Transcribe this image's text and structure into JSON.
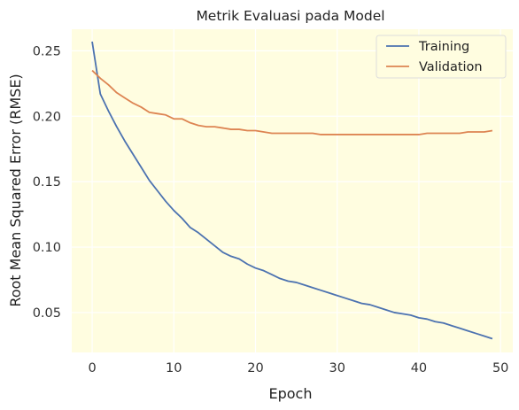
{
  "chart_data": {
    "type": "line",
    "title": "Metrik Evaluasi pada Model",
    "xlabel": "Epoch",
    "ylabel": "Root Mean Squared Error (RMSE)",
    "xlim": [
      -2.5,
      51.5
    ],
    "ylim": [
      0.0195,
      0.2665
    ],
    "xticks": [
      0,
      10,
      20,
      30,
      40,
      50
    ],
    "yticks": [
      0.05,
      0.1,
      0.15,
      0.2,
      0.25
    ],
    "xtick_labels": [
      "0",
      "10",
      "20",
      "30",
      "40",
      "50"
    ],
    "ytick_labels": [
      "0.05",
      "0.10",
      "0.15",
      "0.20",
      "0.25"
    ],
    "grid": true,
    "legend_position": "top-right",
    "background_color": "#fffde0",
    "grid_color": "#ffffff",
    "x": [
      0,
      1,
      2,
      3,
      4,
      5,
      6,
      7,
      8,
      9,
      10,
      11,
      12,
      13,
      14,
      15,
      16,
      17,
      18,
      19,
      20,
      21,
      22,
      23,
      24,
      25,
      26,
      27,
      28,
      29,
      30,
      31,
      32,
      33,
      34,
      35,
      36,
      37,
      38,
      39,
      40,
      41,
      42,
      43,
      44,
      45,
      46,
      47,
      48,
      49
    ],
    "series": [
      {
        "name": "Training",
        "color": "#4c72b0",
        "values": [
          0.257,
          0.217,
          0.204,
          0.192,
          0.181,
          0.171,
          0.161,
          0.151,
          0.143,
          0.135,
          0.128,
          0.122,
          0.115,
          0.111,
          0.106,
          0.101,
          0.096,
          0.093,
          0.091,
          0.087,
          0.084,
          0.082,
          0.079,
          0.076,
          0.074,
          0.073,
          0.071,
          0.069,
          0.067,
          0.065,
          0.063,
          0.061,
          0.059,
          0.057,
          0.056,
          0.054,
          0.052,
          0.05,
          0.049,
          0.048,
          0.046,
          0.045,
          0.043,
          0.042,
          0.04,
          0.038,
          0.036,
          0.034,
          0.032,
          0.03
        ]
      },
      {
        "name": "Validation",
        "color": "#dd8452",
        "values": [
          0.235,
          0.229,
          0.224,
          0.218,
          0.214,
          0.21,
          0.207,
          0.203,
          0.202,
          0.201,
          0.198,
          0.198,
          0.195,
          0.193,
          0.192,
          0.192,
          0.191,
          0.19,
          0.19,
          0.189,
          0.189,
          0.188,
          0.187,
          0.187,
          0.187,
          0.187,
          0.187,
          0.187,
          0.186,
          0.186,
          0.186,
          0.186,
          0.186,
          0.186,
          0.186,
          0.186,
          0.186,
          0.186,
          0.186,
          0.186,
          0.186,
          0.187,
          0.187,
          0.187,
          0.187,
          0.187,
          0.188,
          0.188,
          0.188,
          0.189
        ]
      }
    ]
  }
}
